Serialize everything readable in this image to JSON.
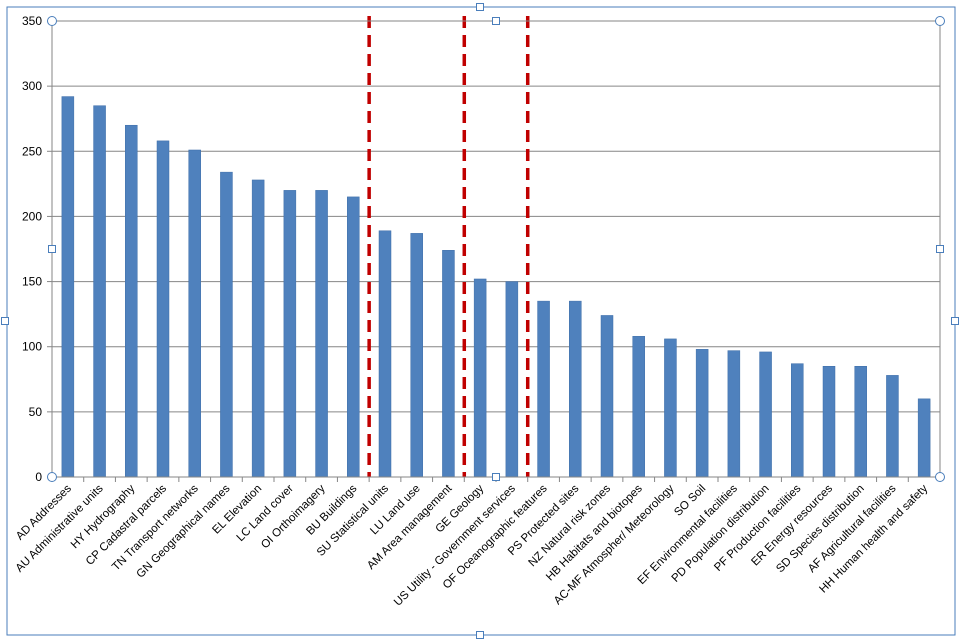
{
  "chart_data": {
    "type": "bar",
    "title": "",
    "xlabel": "",
    "ylabel": "",
    "ylim": [
      0,
      350
    ],
    "yticks": [
      0,
      50,
      100,
      150,
      200,
      250,
      300,
      350
    ],
    "grid": true,
    "legend": "none",
    "categories": [
      "AD Addresses",
      "AU Administrative units",
      "HY Hydrography",
      "CP Cadastral parcels",
      "TN Transport networks",
      "GN Geographical names",
      "EL Elevation",
      "LC Land cover",
      "OI Orthoimagery",
      "BU Buildings",
      "SU Statistical units",
      "LU Land use",
      "AM Area management",
      "GE Geology",
      "US Utility - Government services",
      "OF Oceanographic  features",
      "PS Protected sites",
      "NZ Natural risk zones",
      "HB Habitats and biotopes",
      "AC-MF Atmospher/ Meteorology",
      "SO Soil",
      "EF Environmental facilities",
      "PD Population distribution",
      "PF Production  facilities",
      "ER Energy resources",
      "SD Species distribution",
      "AF Agricultural  facilities",
      "HH Human health and safety"
    ],
    "values": [
      292,
      285,
      270,
      258,
      251,
      234,
      228,
      220,
      220,
      215,
      189,
      187,
      174,
      152,
      150,
      135,
      135,
      124,
      108,
      106,
      98,
      97,
      96,
      87,
      85,
      85,
      78,
      60
    ],
    "separators_after_category": [
      "BU Buildings",
      "AM Area management",
      "US Utility - Government services"
    ],
    "colors": {
      "bar": "#4f81bd",
      "bar_stroke": "#3d6da8",
      "grid": "#868686",
      "separator": "#c00000",
      "axis": "#868686",
      "frame": "#4a7ebb",
      "handle": "#4a7ebb"
    }
  }
}
